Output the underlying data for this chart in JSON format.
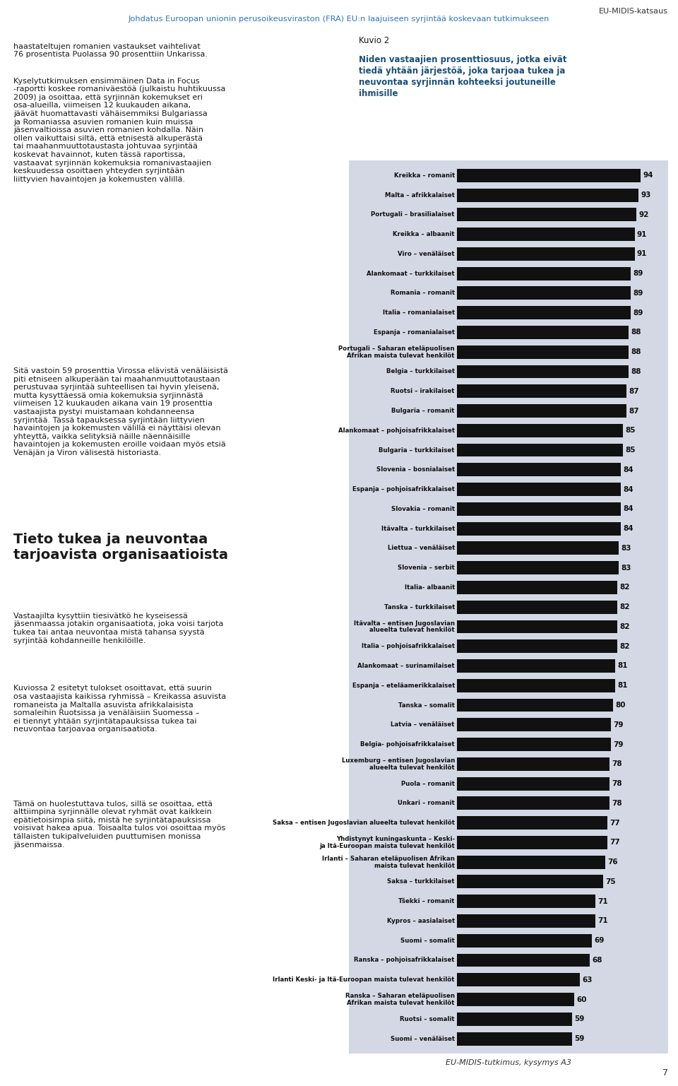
{
  "header_right": "EU-MIDIS-katsaus",
  "header_link": "Johdatus Euroopan unionin perusoikeusviraston (FRA) EU:n laajuiseen syrjintää koskevaan tutkimukseen",
  "figure_number": "Kuvio 2",
  "figure_title": "Niden vastaajien prosenttiosuus, jotka eivät\ntiedä yhtään järjestöä, joka tarjoaa tukea ja\nneuvontaa syrjinnän kohteeksi joutuneille\nihmisille",
  "source_note": "EU-MIDIS-tutkimus, kysymys A3",
  "page_number": "7",
  "left_body1": "haastateltujen romanien vastaukset vaihtelivat\n76 prosentista Puolassa 90 prosenttiin Unkarissa.",
  "left_body2": "Kyselytutkimuksen ensimmäinen Data in Focus\n-raportti koskee romaniväestöä (julkaistu huhtikuussa\n2009) ja osoittaa, että syrjinnän kokemukset eri\nosa-alueilla, viimeisen 12 kuukauden aikana,\njäävät huomattavasti vähäisemmiksi Bulgariassa\nja Romaniassa asuvien romanien kuin muissa\njäsenvaltioissa asuvien romanien kohdalla. Näin\nollen vaikuttaisi siltä, että etnisestä alkuperästä\ntai maahanmuuttotaustasta johtuvaa syrjintää\nkoskevat havainnot, kuten tässä raportissa,\nvastaavat syrjinnän kokemuksia romanivastaajien\nkeskuudessa osoittaen yhteyden syrjintään\nliittyvien havaintojen ja kokemusten välillä.",
  "left_body3": "Sitä vastoin 59 prosenttia Virossa elävistä venäläisistä\npiti etniseen alkuperään tai maahanmuuttotaustaan\nperustuvaa syrjintää suhteellisen tai hyvin yleisenä,\nmutta kysyttäessä omia kokemuksia syrjinnästä\nviimeisen 12 kuukauden aikana vain 19 prosenttia\nvastaajista pystyi muistamaan kohdanneensa\nsyrjintää. Tässä tapauksessa syrjintään liittyvien\nhavaintojen ja kokemusten välillä ei näyttäisi olevan\nyhteyttä, vaikka selityksiä näille näennäisille\nhavaintojen ja kokemusten eroille voidaan myös etsiä\nVenäjän ja Viron välisestä historiasta.",
  "left_heading": "Tieto tukea ja neuvontaa\ntarjoavista organisaatioista",
  "left_body4": "Vastaajilta kysyttiin tiesivätkö he kyseisessä\njäsenmaassa jotakin organisaatiota, joka voisi tarjota\ntukea tai antaa neuvontaa mistä tahansa syystä\nsyrjintää kohdanneille henkilöille.",
  "left_body5": "Kuviossa 2 esitetyt tulokset osoittavat, että suurin\nosa vastaajista kaikissa ryhmissä – Kreikassa asuvista\nromaneista ja Maltalla asuvista afrikkalaisista\nsomaleihin Ruotsissa ja venäläisiin Suomessa –\nei tiennyt yhtään syrjintätapauksissa tukea tai\nneuvontaa tarjoavaa organisaatiota.",
  "left_body6": "Tämä on huolestuttava tulos, sillä se osoittaa, että\nalttiimpina syrjinnälle olevat ryhmät ovat kaikkein\nepätietoisimpia siitä, mistä he syrjintätapauksissa\nvoisivat hakea apua. Toisaalta tulos voi osoittaa myös\ntällaisten tukipalveluiden puuttumisen monissa\njäsenmaissa.",
  "categories": [
    "Kreikka – romanit",
    "Malta – afrikkalaiset",
    "Portugali – brasilialaiset",
    "Kreikka – albaanit",
    "Viro – venäläiset",
    "Alankomaat – turkkilaiset",
    "Romania – romanit",
    "Italia – romanialaiset",
    "Espanja – romanialaiset",
    "Portugali – Saharan eteläpuolisen\nAfrikan maista tulevat henkilöt",
    "Belgia – turkkilaiset",
    "Ruotsi – irakilaiset",
    "Bulgaria – romanit",
    "Alankomaat – pohjoisafrikkalaiset",
    "Bulgaria – turkkilaiset",
    "Slovenia – bosnialaiset",
    "Espanja – pohjoisafrikkalaiset",
    "Slovakia – romanit",
    "Itävalta – turkkilaiset",
    "Liettua – venäläiset",
    "Slovenia – serbit",
    "Italia- albaanit",
    "Tanska – turkkilaiset",
    "Itävalta – entisen Jugoslavian\nalueelta tulevat henkilöt",
    "Italia – pohjoisafrikkalaiset",
    "Alankomaat – surinamilaiset",
    "Espanja – eteläamerikkalaiset",
    "Tanska – somalit",
    "Latvia – venäläiset",
    "Belgia- pohjoisafrikkalaiset",
    "Luxemburg – entisen Jugoslavian\nalueelta tulevat henkilöt",
    "Puola – romanit",
    "Unkari – romanit",
    "Saksa – entisen Jugoslavian alueelta tulevat henkilöt",
    "Yhdistynyt kuningaskunta – Keski-\nja Itä-Euroopan maista tulevat henkilöt",
    "Irlanti – Saharan eteläpuolisen Afrikan\nmaista tulevat henkilöt",
    "Saksa – turkkilaiset",
    "Tšekki – romanit",
    "Kypros – aasialaiset",
    "Suomi – somalit",
    "Ranska – pohjoisafrikkalaiset",
    "Irlanti Keski- ja Itä-Euroopan maista tulevat henkilöt",
    "Ranska – Saharan eteläpuolisen\nAfrikan maista tulevat henkilöt",
    "Ruotsi – somalit",
    "Suomi – venäläiset"
  ],
  "values": [
    94,
    93,
    92,
    91,
    91,
    89,
    89,
    89,
    88,
    88,
    88,
    87,
    87,
    85,
    85,
    84,
    84,
    84,
    84,
    83,
    83,
    82,
    82,
    82,
    82,
    81,
    81,
    80,
    79,
    79,
    78,
    78,
    78,
    77,
    77,
    76,
    75,
    71,
    71,
    69,
    68,
    63,
    60,
    59,
    59
  ],
  "bar_color": "#111111",
  "chart_bg": "#d4d8e5",
  "value_color": "#111111",
  "label_color": "#111111",
  "title_color": "#1a4f7a",
  "link_color": "#2e75b6",
  "bar_height": 0.68,
  "label_fontsize": 6.2,
  "value_fontsize": 7.5,
  "body_fontsize": 8.0,
  "heading_fontsize": 14.0
}
